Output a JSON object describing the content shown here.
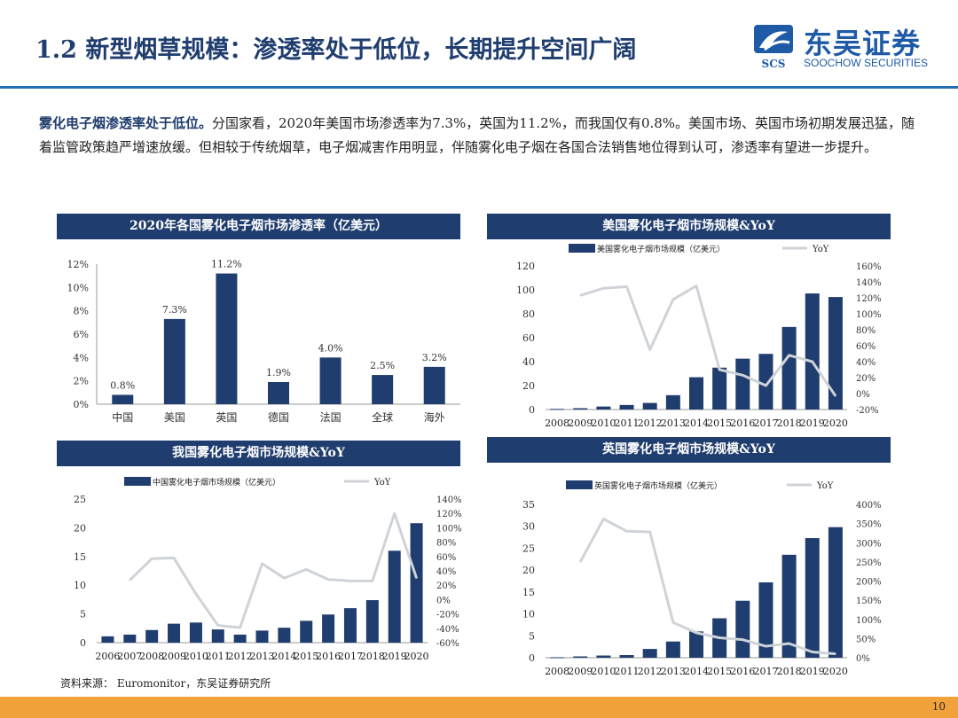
{
  "header": {
    "title": "1.2 新型烟草规模：渗透率处于低位，长期提升空间广阔",
    "logo_cn": "东吴证券",
    "logo_en": "SOOCHOW SECURITIES",
    "logo_abbr": "SCS"
  },
  "intro": {
    "lead": "雾化电子烟渗透率处于低位。",
    "body": "分国家看，2020年美国市场渗透率为7.3%，英国为11.2%，而我国仅有0.8%。美国市场、英国市场初期发展迅猛，随着监管政策趋严增速放缓。但相较于传统烟草，电子烟减害作用明显，伴随雾化电子烟在各国合法销售地位得到认可，渗透率有望进一步提升。"
  },
  "chart_data": [
    {
      "id": "penetration",
      "type": "bar",
      "title": "2020年各国雾化电子烟市场渗透率（亿美元）",
      "categories": [
        "中国",
        "美国",
        "英国",
        "德国",
        "法国",
        "全球",
        "海外"
      ],
      "values": [
        0.8,
        7.3,
        11.2,
        1.9,
        4.0,
        2.5,
        3.2
      ],
      "data_labels": [
        "0.8%",
        "7.3%",
        "11.2%",
        "1.9%",
        "4.0%",
        "2.5%",
        "3.2%"
      ],
      "ylim": [
        0,
        12
      ],
      "yticks": [
        "0%",
        "2%",
        "4%",
        "6%",
        "8%",
        "10%",
        "12%"
      ],
      "color": "#1f3d6e"
    },
    {
      "id": "us",
      "type": "bar+line",
      "title": "美国雾化电子烟市场规模&YoY",
      "categories": [
        "2008",
        "2009",
        "2010",
        "2011",
        "2012",
        "2013",
        "2014",
        "2015",
        "2016",
        "2017",
        "2018",
        "2019",
        "2020"
      ],
      "series": [
        {
          "name": "美国雾化电子烟市场规模（亿美元）",
          "type": "bar",
          "axis": "left",
          "values": [
            0.5,
            1.1,
            2.5,
            3.8,
            5.5,
            12,
            27,
            35,
            42.5,
            46.5,
            69,
            97,
            94
          ]
        },
        {
          "name": "YoY",
          "type": "line",
          "axis": "right",
          "values": [
            null,
            123,
            132,
            134,
            55,
            118,
            135,
            30,
            23,
            10,
            48,
            40,
            -3
          ]
        }
      ],
      "ylim_left": [
        0,
        120
      ],
      "yticks_left": [
        "0",
        "20",
        "40",
        "60",
        "80",
        "100",
        "120"
      ],
      "ylim_right": [
        -20,
        160
      ],
      "yticks_right": [
        "-20%",
        "0%",
        "20%",
        "40%",
        "60%",
        "80%",
        "100%",
        "120%",
        "140%",
        "160%"
      ]
    },
    {
      "id": "china",
      "type": "bar+line",
      "title": "我国雾化电子烟市场规模&YoY",
      "categories": [
        "2006",
        "2007",
        "2008",
        "2009",
        "2010",
        "2011",
        "2012",
        "2013",
        "2014",
        "2015",
        "2016",
        "2017",
        "2018",
        "2019",
        "2020"
      ],
      "series": [
        {
          "name": "中国雾化电子烟市场规模（亿美元）",
          "type": "bar",
          "axis": "left",
          "values": [
            1.1,
            1.4,
            2.2,
            3.3,
            3.5,
            2.3,
            1.4,
            2.1,
            2.6,
            3.8,
            4.9,
            6.0,
            7.4,
            16.0,
            20.8
          ]
        },
        {
          "name": "YoY",
          "type": "line",
          "axis": "right",
          "values": [
            null,
            27,
            57,
            58,
            8,
            -36,
            -39,
            50,
            30,
            42,
            28,
            26,
            26,
            120,
            30
          ]
        }
      ],
      "ylim_left": [
        0,
        25
      ],
      "yticks_left": [
        "0",
        "5",
        "10",
        "15",
        "20",
        "25"
      ],
      "ylim_right": [
        -60,
        140
      ],
      "yticks_right": [
        "-60%",
        "-40%",
        "-20%",
        "0%",
        "20%",
        "40%",
        "60%",
        "80%",
        "100%",
        "120%",
        "140%"
      ]
    },
    {
      "id": "uk",
      "type": "bar+line",
      "title": "英国雾化电子烟市场规模&YoY",
      "categories": [
        "2008",
        "2009",
        "2010",
        "2011",
        "2012",
        "2013",
        "2014",
        "2015",
        "2016",
        "2017",
        "2018",
        "2019",
        "2020"
      ],
      "series": [
        {
          "name": "英国雾化电子烟市场规模（亿美元）",
          "type": "bar",
          "axis": "left",
          "values": [
            0.1,
            0.3,
            0.5,
            0.6,
            2.0,
            3.7,
            6.0,
            9.0,
            13.0,
            17.2,
            23.5,
            27.3,
            29.8
          ]
        },
        {
          "name": "YoY",
          "type": "line",
          "axis": "right",
          "values": [
            null,
            250,
            362,
            330,
            328,
            92,
            65,
            52,
            47,
            30,
            37,
            15,
            10
          ]
        }
      ],
      "ylim_left": [
        0,
        35
      ],
      "yticks_left": [
        "0",
        "5",
        "10",
        "15",
        "20",
        "25",
        "30",
        "35"
      ],
      "ylim_right": [
        0,
        400
      ],
      "yticks_right": [
        "0%",
        "50%",
        "100%",
        "150%",
        "200%",
        "250%",
        "300%",
        "350%",
        "400%"
      ]
    }
  ],
  "footer": {
    "source": "资料来源：  Euromonitor，东吴证券研究所",
    "page": "10"
  },
  "colors": {
    "navy": "#1f3d6e",
    "line": "#cfd3d8",
    "accent": "#f2a23a",
    "rule": "#1f6fb5"
  }
}
